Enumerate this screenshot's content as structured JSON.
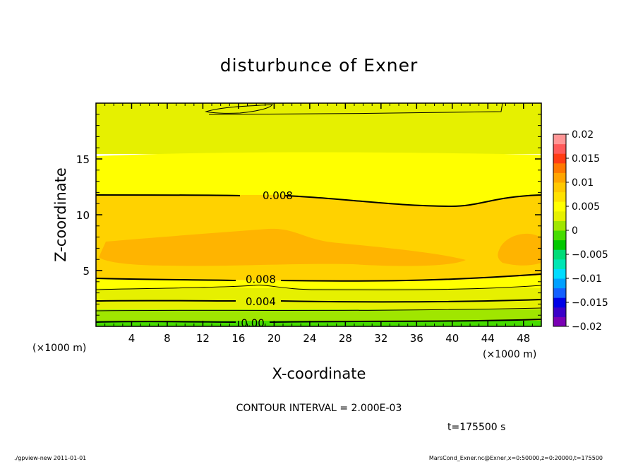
{
  "chart_data": {
    "type": "contour",
    "title": "disturbunce of Exner",
    "xlabel": "X-coordinate",
    "ylabel": "Z-coordinate",
    "x_unit": "(×1000 m)",
    "y_unit": "(×1000 m)",
    "xlim": [
      0,
      50
    ],
    "ylim": [
      0,
      20
    ],
    "x_ticks": [
      4,
      8,
      12,
      16,
      20,
      24,
      28,
      32,
      36,
      40,
      44,
      48
    ],
    "y_ticks": [
      5,
      10,
      15
    ],
    "contour_interval_text": "CONTOUR INTERVAL = 2.000E-03",
    "time_text": "t=175500 s",
    "colorbar": {
      "range": [
        -0.02,
        0.02
      ],
      "ticks": [
        "0.02",
        "0.015",
        "0.01",
        "0.005",
        "0",
        "−0.005",
        "−0.01",
        "−0.015",
        "−0.02"
      ],
      "colors": [
        "#7a00b4",
        "#3a00c8",
        "#0000e6",
        "#1460ff",
        "#00a0ff",
        "#00dcff",
        "#00e6b4",
        "#00dc78",
        "#00c800",
        "#46dc00",
        "#a0e600",
        "#e6f000",
        "#ffff00",
        "#ffe100",
        "#ffc800",
        "#ffa500",
        "#ff7800",
        "#ff3c14",
        "#ff5a5a",
        "#ff9696"
      ]
    },
    "bands": [
      {
        "value_range": [
          0.006,
          0.008
        ],
        "color": "#ffe100"
      },
      {
        "value_range": [
          0.008,
          0.01
        ],
        "color": "#ffd200"
      },
      {
        "value_range": [
          0.01,
          0.012
        ],
        "color": "#ffb400"
      },
      {
        "value_range": [
          0.004,
          0.006
        ],
        "color": "#ffff00"
      },
      {
        "value_range": [
          0.002,
          0.004
        ],
        "color": "#e6f000"
      },
      {
        "value_range": [
          0.0,
          0.002
        ],
        "color": "#a0e600"
      },
      {
        "value_range": [
          -0.002,
          0.0
        ],
        "color": "#46dc00"
      }
    ],
    "contour_labels": [
      {
        "text": "0.008",
        "x": 20.4,
        "z": 11.7
      },
      {
        "text": "0.008",
        "x": 18.5,
        "z": 4.2
      },
      {
        "text": "0.004",
        "x": 18.5,
        "z": 2.2
      },
      {
        "text": "0.00",
        "x": 17.6,
        "z": 0.3
      }
    ]
  },
  "footer": {
    "left": "./gpview-new   2011-01-01",
    "right": "MarsCond_Exner.nc@Exner,x=0:50000,z=0:20000,t=175500"
  }
}
